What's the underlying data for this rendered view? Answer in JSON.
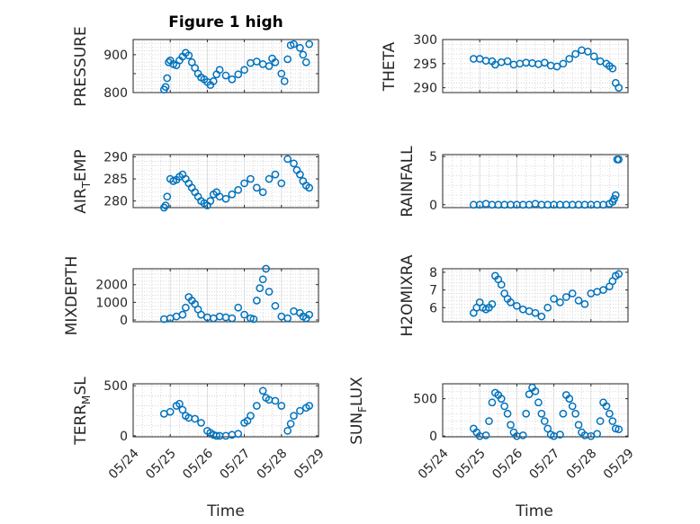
{
  "figure_title": "Figure 1 high",
  "colors": {
    "marker": "#0072bd",
    "axes": "#262626",
    "grid": "#c8c8c8"
  },
  "chart_data": [
    {
      "type": "scatter",
      "title": "Figure 1 high",
      "ylabel": "PRESSURE",
      "ylim": [
        800,
        940
      ],
      "yticks": [
        800,
        850,
        900
      ],
      "yticklabels": [
        "800",
        "",
        "900"
      ],
      "xlim": [
        "05/24",
        "05/29"
      ],
      "grid": true,
      "x": [
        "05/24 20:00",
        "05/24 21:00",
        "05/24 22:00",
        "05/24 23:00",
        "05/25 00:00",
        "05/25 02:00",
        "05/25 04:00",
        "05/25 06:00",
        "05/25 08:00",
        "05/25 10:00",
        "05/25 12:00",
        "05/25 14:00",
        "05/25 16:00",
        "05/25 18:00",
        "05/25 20:00",
        "05/25 22:00",
        "05/26 00:00",
        "05/26 02:00",
        "05/26 04:00",
        "05/26 06:00",
        "05/26 08:00",
        "05/26 12:00",
        "05/26 16:00",
        "05/26 20:00",
        "05/27 00:00",
        "05/27 04:00",
        "05/27 08:00",
        "05/27 12:00",
        "05/27 16:00",
        "05/27 18:00",
        "05/27 20:00",
        "05/28 00:00",
        "05/28 02:00",
        "05/28 04:00",
        "05/28 06:00",
        "05/28 08:00",
        "05/28 12:00",
        "05/28 14:00",
        "05/28 16:00",
        "05/28 18:00"
      ],
      "y": [
        808,
        815,
        838,
        880,
        885,
        875,
        872,
        885,
        895,
        905,
        898,
        880,
        865,
        850,
        840,
        835,
        828,
        820,
        830,
        848,
        860,
        845,
        835,
        848,
        860,
        878,
        882,
        875,
        870,
        890,
        880,
        850,
        830,
        888,
        925,
        928,
        918,
        900,
        880,
        928
      ]
    },
    {
      "type": "scatter",
      "ylabel": "THETA",
      "ylim": [
        289,
        300
      ],
      "yticks": [
        290,
        295,
        300
      ],
      "yticklabels": [
        "290",
        "295",
        "300"
      ],
      "xlim": [
        "05/24",
        "05/29"
      ],
      "grid": true,
      "x": [
        "05/24 20:00",
        "05/25 00:00",
        "05/25 04:00",
        "05/25 08:00",
        "05/25 10:00",
        "05/25 14:00",
        "05/25 18:00",
        "05/25 22:00",
        "05/26 02:00",
        "05/26 06:00",
        "05/26 10:00",
        "05/26 14:00",
        "05/26 18:00",
        "05/26 22:00",
        "05/27 02:00",
        "05/27 06:00",
        "05/27 10:00",
        "05/27 14:00",
        "05/27 18:00",
        "05/27 22:00",
        "05/28 02:00",
        "05/28 06:00",
        "05/28 10:00",
        "05/28 12:00",
        "05/28 14:00",
        "05/28 16:00",
        "05/28 18:00"
      ],
      "y": [
        296,
        296,
        295.6,
        295.5,
        294.8,
        295.3,
        295.5,
        294.8,
        295,
        295.2,
        295.1,
        294.9,
        295.2,
        294.6,
        294.4,
        295,
        296,
        297,
        297.8,
        297.5,
        296.5,
        295.5,
        295,
        294.5,
        294,
        291,
        290
      ]
    },
    {
      "type": "scatter",
      "ylabel": "AIR_TEMP",
      "ylim": [
        278.5,
        290.5
      ],
      "yticks": [
        280,
        285,
        290
      ],
      "yticklabels": [
        "280",
        "285",
        "290"
      ],
      "xlim": [
        "05/24",
        "05/29"
      ],
      "grid": true,
      "x": [
        "05/24 20:00",
        "05/24 21:00",
        "05/24 22:00",
        "05/25 00:00",
        "05/25 02:00",
        "05/25 04:00",
        "05/25 06:00",
        "05/25 08:00",
        "05/25 10:00",
        "05/25 12:00",
        "05/25 14:00",
        "05/25 16:00",
        "05/25 18:00",
        "05/25 20:00",
        "05/25 22:00",
        "05/26 00:00",
        "05/26 02:00",
        "05/26 04:00",
        "05/26 06:00",
        "05/26 08:00",
        "05/26 12:00",
        "05/26 16:00",
        "05/26 20:00",
        "05/27 00:00",
        "05/27 04:00",
        "05/27 08:00",
        "05/27 12:00",
        "05/27 16:00",
        "05/27 20:00",
        "05/28 00:00",
        "05/28 04:00",
        "05/28 08:00",
        "05/28 10:00",
        "05/28 12:00",
        "05/28 14:00",
        "05/28 16:00",
        "05/28 18:00"
      ],
      "y": [
        278.5,
        279,
        281,
        285,
        284.5,
        284.8,
        285.5,
        286,
        285,
        284,
        283,
        282,
        281,
        280,
        279.5,
        279,
        280,
        281.5,
        282,
        281,
        280.5,
        281.5,
        282.5,
        284,
        285,
        283,
        282,
        285,
        286,
        284,
        289.5,
        288.5,
        287,
        286,
        284.5,
        283.5,
        283
      ]
    },
    {
      "type": "scatter",
      "ylabel": "RAINFALL",
      "ylim": [
        -0.3,
        5.2
      ],
      "yticks": [
        0,
        5
      ],
      "yticklabels": [
        "0",
        "5"
      ],
      "xlim": [
        "05/24",
        "05/29"
      ],
      "grid": true,
      "x": [
        "05/24 20:00",
        "05/25 00:00",
        "05/25 04:00",
        "05/25 08:00",
        "05/25 12:00",
        "05/25 16:00",
        "05/25 20:00",
        "05/26 00:00",
        "05/26 04:00",
        "05/26 08:00",
        "05/26 12:00",
        "05/26 16:00",
        "05/26 20:00",
        "05/27 00:00",
        "05/27 04:00",
        "05/27 08:00",
        "05/27 12:00",
        "05/27 16:00",
        "05/27 20:00",
        "05/28 00:00",
        "05/28 04:00",
        "05/28 08:00",
        "05/28 12:00",
        "05/28 14:00",
        "05/28 15:00",
        "05/28 16:00",
        "05/28 17:00",
        "05/28 18:00"
      ],
      "y": [
        0,
        0,
        0.1,
        0,
        0,
        0,
        0,
        0,
        0,
        0,
        0.1,
        0,
        0,
        0,
        0,
        0,
        0,
        0,
        0,
        0,
        0,
        0,
        0.1,
        0.3,
        0.6,
        1,
        4.7,
        4.7
      ]
    },
    {
      "type": "scatter",
      "ylabel": "MIXDEPTH",
      "ylim": [
        -100,
        2900
      ],
      "yticks": [
        0,
        1000,
        2000
      ],
      "yticklabels": [
        "0",
        "1000",
        "2000"
      ],
      "xlim": [
        "05/24",
        "05/29"
      ],
      "grid": true,
      "x": [
        "05/24 20:00",
        "05/25 00:00",
        "05/25 04:00",
        "05/25 08:00",
        "05/25 10:00",
        "05/25 12:00",
        "05/25 14:00",
        "05/25 16:00",
        "05/25 18:00",
        "05/25 20:00",
        "05/26 00:00",
        "05/26 04:00",
        "05/26 08:00",
        "05/26 12:00",
        "05/26 16:00",
        "05/26 20:00",
        "05/27 00:00",
        "05/27 04:00",
        "05/27 06:00",
        "05/27 08:00",
        "05/27 10:00",
        "05/27 12:00",
        "05/27 14:00",
        "05/27 16:00",
        "05/27 20:00",
        "05/28 00:00",
        "05/28 04:00",
        "05/28 08:00",
        "05/28 12:00",
        "05/28 14:00",
        "05/28 16:00",
        "05/28 18:00"
      ],
      "y": [
        50,
        100,
        200,
        300,
        700,
        1300,
        1100,
        900,
        600,
        300,
        150,
        100,
        200,
        150,
        100,
        700,
        300,
        100,
        50,
        1100,
        1800,
        2300,
        2900,
        1600,
        800,
        200,
        100,
        500,
        400,
        200,
        100,
        300
      ]
    },
    {
      "type": "scatter",
      "ylabel": "H2OMIXRA",
      "ylim": [
        5.2,
        8.2
      ],
      "yticks": [
        6,
        7,
        8
      ],
      "yticklabels": [
        "6",
        "7",
        "8"
      ],
      "xlim": [
        "05/24",
        "05/29"
      ],
      "grid": true,
      "x": [
        "05/24 20:00",
        "05/24 22:00",
        "05/25 00:00",
        "05/25 02:00",
        "05/25 04:00",
        "05/25 06:00",
        "05/25 08:00",
        "05/25 10:00",
        "05/25 12:00",
        "05/25 14:00",
        "05/25 16:00",
        "05/25 18:00",
        "05/25 20:00",
        "05/26 00:00",
        "05/26 04:00",
        "05/26 08:00",
        "05/26 12:00",
        "05/26 16:00",
        "05/26 20:00",
        "05/27 00:00",
        "05/27 04:00",
        "05/27 08:00",
        "05/27 12:00",
        "05/27 16:00",
        "05/27 20:00",
        "05/28 00:00",
        "05/28 04:00",
        "05/28 08:00",
        "05/28 12:00",
        "05/28 14:00",
        "05/28 16:00",
        "05/28 18:00"
      ],
      "y": [
        5.7,
        6,
        6.3,
        6,
        5.9,
        6,
        6.2,
        7.8,
        7.6,
        7.3,
        6.8,
        6.5,
        6.3,
        6.1,
        5.9,
        5.8,
        5.7,
        5.5,
        6,
        6.5,
        6.3,
        6.6,
        6.8,
        6.4,
        6.2,
        6.8,
        6.9,
        7,
        7.2,
        7.5,
        7.8,
        7.9
      ]
    },
    {
      "type": "scatter",
      "ylabel": "TERR_MSL",
      "ylim": [
        -10,
        520
      ],
      "yticks": [
        0,
        500
      ],
      "yticklabels": [
        "0",
        "500"
      ],
      "xlim": [
        "05/24",
        "05/29"
      ],
      "grid": true,
      "x": [
        "05/24 20:00",
        "05/25 00:00",
        "05/25 04:00",
        "05/25 06:00",
        "05/25 08:00",
        "05/25 10:00",
        "05/25 12:00",
        "05/25 16:00",
        "05/25 20:00",
        "05/26 00:00",
        "05/26 02:00",
        "05/26 04:00",
        "05/26 06:00",
        "05/26 08:00",
        "05/26 12:00",
        "05/26 16:00",
        "05/26 20:00",
        "05/27 00:00",
        "05/27 02:00",
        "05/27 04:00",
        "05/27 08:00",
        "05/27 12:00",
        "05/27 14:00",
        "05/27 16:00",
        "05/27 20:00",
        "05/28 00:00",
        "05/28 04:00",
        "05/28 06:00",
        "05/28 08:00",
        "05/28 12:00",
        "05/28 16:00",
        "05/28 18:00"
      ],
      "y": [
        220,
        240,
        300,
        320,
        260,
        200,
        180,
        170,
        130,
        50,
        30,
        10,
        0,
        0,
        0,
        10,
        20,
        130,
        150,
        200,
        300,
        450,
        380,
        360,
        350,
        300,
        50,
        120,
        200,
        250,
        280,
        300
      ]
    },
    {
      "type": "scatter",
      "ylabel": "SUN_FLUX",
      "ylim": [
        -10,
        700
      ],
      "yticks": [
        0,
        500
      ],
      "yticklabels": [
        "0",
        "500"
      ],
      "xlim": [
        "05/24",
        "05/29"
      ],
      "grid": true,
      "x": [
        "05/24 20:00",
        "05/24 22:00",
        "05/25 00:00",
        "05/25 04:00",
        "05/25 06:00",
        "05/25 08:00",
        "05/25 10:00",
        "05/25 12:00",
        "05/25 14:00",
        "05/25 16:00",
        "05/25 18:00",
        "05/25 20:00",
        "05/25 22:00",
        "05/26 00:00",
        "05/26 04:00",
        "05/26 06:00",
        "05/26 08:00",
        "05/26 10:00",
        "05/26 12:00",
        "05/26 14:00",
        "05/26 16:00",
        "05/26 18:00",
        "05/26 20:00",
        "05/26 22:00",
        "05/27 00:00",
        "05/27 04:00",
        "05/27 06:00",
        "05/27 08:00",
        "05/27 10:00",
        "05/27 12:00",
        "05/27 14:00",
        "05/27 16:00",
        "05/27 18:00",
        "05/27 20:00",
        "05/28 00:00",
        "05/28 04:00",
        "05/28 06:00",
        "05/28 08:00",
        "05/28 10:00",
        "05/28 12:00",
        "05/28 14:00",
        "05/28 16:00",
        "05/28 18:00"
      ],
      "y": [
        100,
        50,
        0,
        10,
        200,
        450,
        580,
        550,
        500,
        400,
        300,
        150,
        50,
        0,
        10,
        300,
        560,
        650,
        600,
        450,
        300,
        200,
        100,
        20,
        0,
        20,
        300,
        550,
        500,
        400,
        300,
        150,
        50,
        10,
        0,
        30,
        200,
        450,
        400,
        300,
        200,
        100,
        90
      ]
    }
  ],
  "x_tick_labels": [
    "05/24",
    "05/25",
    "05/26",
    "05/27",
    "05/28",
    "05/29"
  ],
  "x_axis_label": "Time"
}
